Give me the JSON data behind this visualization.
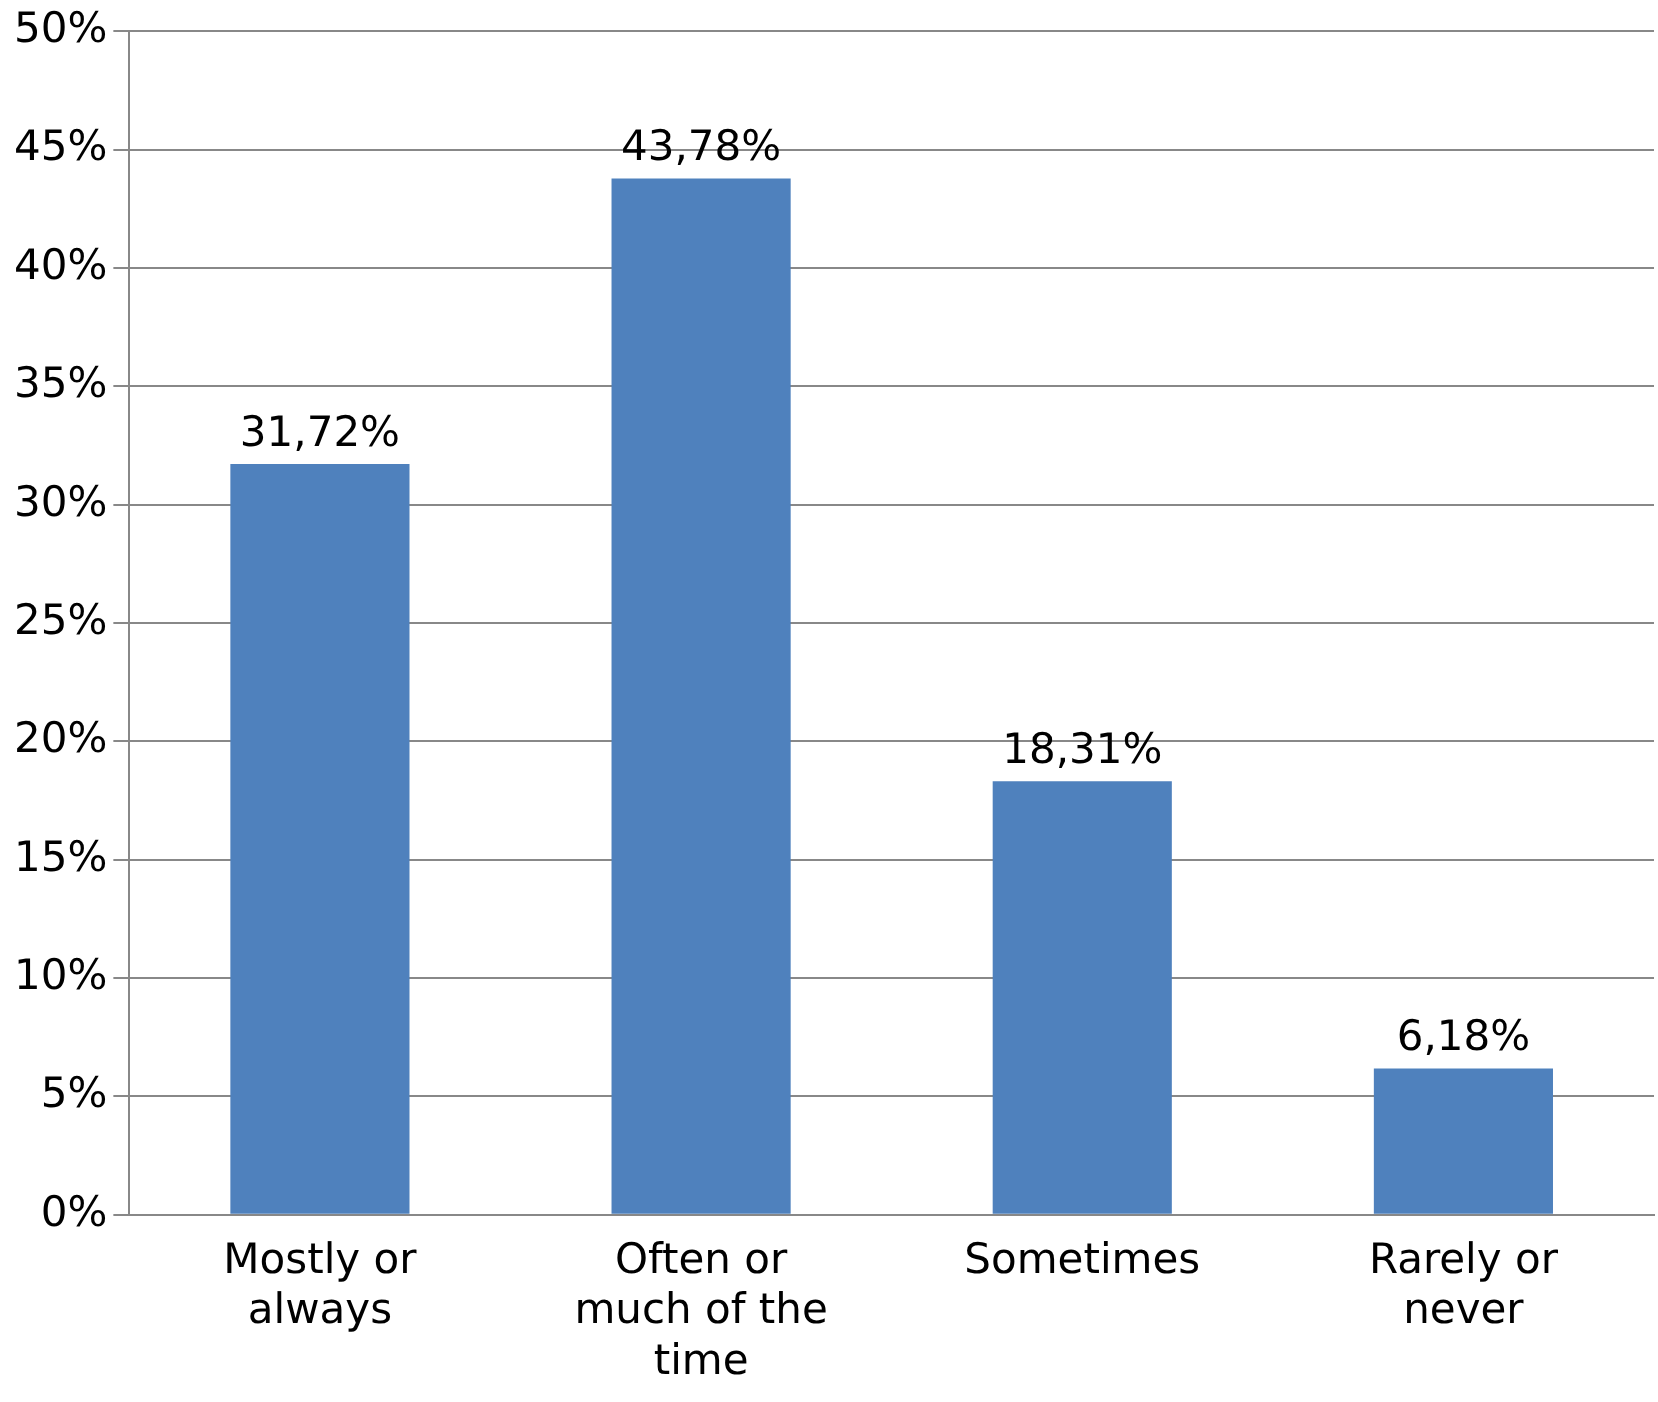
{
  "chart_data": {
    "type": "bar",
    "categories": [
      "Mostly or always",
      "Often or much of the time",
      "Sometimes",
      "Rarely or never"
    ],
    "values": [
      31.72,
      43.78,
      18.31,
      6.18
    ],
    "value_labels": [
      "31,72%",
      "43,78%",
      "18,31%",
      "6,18%"
    ],
    "color": "#4f81bd",
    "ylim": [
      0,
      50
    ],
    "yticks": [
      {
        "value": 0,
        "label": "0%"
      },
      {
        "value": 5,
        "label": "5%"
      },
      {
        "value": 10,
        "label": "10%"
      },
      {
        "value": 15,
        "label": "15%"
      },
      {
        "value": 20,
        "label": "20%"
      },
      {
        "value": 25,
        "label": "25%"
      },
      {
        "value": 30,
        "label": "30%"
      },
      {
        "value": 35,
        "label": "35%"
      },
      {
        "value": 40,
        "label": "40%"
      },
      {
        "value": 45,
        "label": "45%"
      },
      {
        "value": 50,
        "label": "50%"
      }
    ],
    "grid": "y",
    "legend": false
  }
}
